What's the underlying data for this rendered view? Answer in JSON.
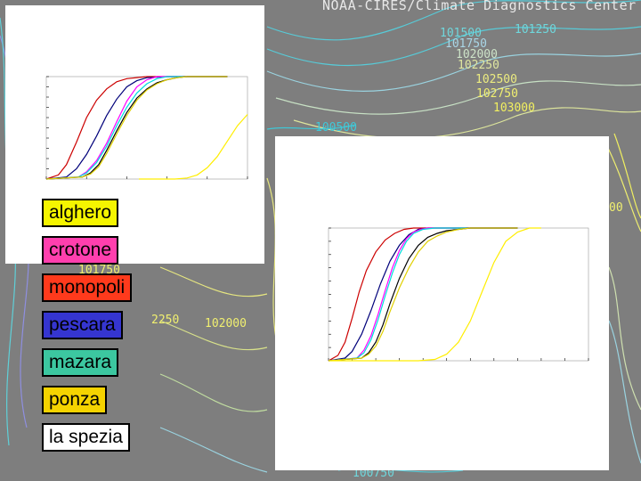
{
  "header": {
    "title": "NOAA-CIRES/Climate Diagnostics Center"
  },
  "isobars": [
    {
      "text": "101500",
      "color": "#6fd7dc"
    },
    {
      "text": "101250",
      "color": "#6fd7dc"
    },
    {
      "text": "101750",
      "color": "#a9d6e6"
    },
    {
      "text": "102000",
      "color": "#cde3c8"
    },
    {
      "text": "102250",
      "color": "#dfe6a0"
    },
    {
      "text": "102500",
      "color": "#ecec80"
    },
    {
      "text": "102750",
      "color": "#f0ef70"
    },
    {
      "text": "103000",
      "color": "#f2f060"
    },
    {
      "text": "100500",
      "color": "#40c8d8"
    },
    {
      "text": "00",
      "color": "#f0ef70"
    },
    {
      "text": "2250",
      "color": "#f0ef70"
    },
    {
      "text": "102000",
      "color": "#f0ef70"
    },
    {
      "text": "101750",
      "color": "#f0ef70"
    },
    {
      "text": "100750",
      "color": "#6fd7dc"
    }
  ],
  "legend": [
    {
      "label": "alghero",
      "color": "#f5f500",
      "text_color": "#000000"
    },
    {
      "label": "crotone",
      "color": "#ff3fae",
      "text_color": "#000000"
    },
    {
      "label": "monopoli",
      "color": "#ff3a1c",
      "text_color": "#000000"
    },
    {
      "label": "pescara",
      "color": "#3535d0",
      "text_color": "#000000"
    },
    {
      "label": "mazara",
      "color": "#3cc7a0",
      "text_color": "#000000"
    },
    {
      "label": "ponza",
      "color": "#f5d300",
      "text_color": "#000000"
    },
    {
      "label": "la spezia",
      "color": "#ffffff",
      "text_color": "#000000"
    }
  ],
  "chart_data": [
    {
      "type": "line",
      "xlim": [
        0,
        5
      ],
      "ylim": [
        0,
        1
      ],
      "grid": false,
      "series": [
        {
          "color": "#cc0000",
          "x": [
            0,
            0.3,
            0.5,
            0.75,
            1,
            1.25,
            1.5,
            1.75,
            2,
            2.5,
            3,
            3.5,
            4.5
          ],
          "y": [
            0,
            0.04,
            0.14,
            0.36,
            0.6,
            0.77,
            0.88,
            0.95,
            0.98,
            1,
            1,
            1,
            1
          ]
        },
        {
          "color": "#00007a",
          "x": [
            0,
            0.5,
            0.75,
            1,
            1.25,
            1.5,
            1.75,
            2,
            2.25,
            2.5,
            3,
            4.5
          ],
          "y": [
            0,
            0.02,
            0.1,
            0.24,
            0.42,
            0.62,
            0.78,
            0.9,
            0.96,
            0.99,
            1,
            1
          ]
        },
        {
          "color": "#ff00ff",
          "x": [
            0,
            0.8,
            1,
            1.25,
            1.5,
            1.75,
            2,
            2.25,
            2.5,
            2.75,
            3,
            4.5
          ],
          "y": [
            0,
            0.02,
            0.07,
            0.18,
            0.35,
            0.56,
            0.76,
            0.9,
            0.97,
            1,
            1,
            1
          ]
        },
        {
          "color": "#00dddd",
          "x": [
            0,
            0.8,
            1,
            1.25,
            1.5,
            1.75,
            2,
            2.25,
            2.5,
            2.75,
            3,
            4.5
          ],
          "y": [
            0,
            0.02,
            0.06,
            0.16,
            0.32,
            0.52,
            0.7,
            0.84,
            0.93,
            0.98,
            1,
            1
          ]
        },
        {
          "color": "#000000",
          "x": [
            0,
            0.9,
            1.1,
            1.3,
            1.5,
            1.75,
            2,
            2.25,
            2.5,
            2.75,
            3,
            3.25,
            3.5,
            4.5
          ],
          "y": [
            0,
            0.02,
            0.06,
            0.14,
            0.28,
            0.47,
            0.65,
            0.79,
            0.88,
            0.94,
            0.97,
            0.99,
            1,
            1
          ]
        },
        {
          "color": "#e0d000",
          "x": [
            0,
            0.9,
            1.1,
            1.3,
            1.5,
            1.75,
            2,
            2.25,
            2.5,
            2.75,
            3,
            3.25,
            3.5,
            4.5
          ],
          "y": [
            0,
            0.02,
            0.05,
            0.12,
            0.25,
            0.44,
            0.62,
            0.77,
            0.87,
            0.93,
            0.97,
            0.99,
            1,
            1
          ]
        },
        {
          "color": "#ffee00",
          "x": [
            2.3,
            3.2,
            3.5,
            3.75,
            4,
            4.25,
            4.5,
            4.75,
            5
          ],
          "y": [
            0,
            0,
            0.01,
            0.04,
            0.11,
            0.22,
            0.37,
            0.52,
            0.63
          ]
        }
      ]
    },
    {
      "type": "line",
      "xlim": [
        0,
        11
      ],
      "ylim": [
        0,
        1
      ],
      "grid": false,
      "series": [
        {
          "color": "#cc0000",
          "x": [
            0,
            0.4,
            0.7,
            1,
            1.3,
            1.6,
            2,
            2.4,
            2.8,
            3.2,
            3.6,
            4,
            5,
            8
          ],
          "y": [
            0,
            0.04,
            0.14,
            0.32,
            0.52,
            0.68,
            0.82,
            0.91,
            0.96,
            0.99,
            1,
            1,
            1,
            1
          ]
        },
        {
          "color": "#00007a",
          "x": [
            0,
            0.7,
            1,
            1.4,
            1.8,
            2.2,
            2.6,
            3,
            3.4,
            3.8,
            4.2,
            5,
            8
          ],
          "y": [
            0,
            0.02,
            0.07,
            0.2,
            0.38,
            0.58,
            0.75,
            0.87,
            0.95,
            0.99,
            1,
            1,
            1
          ]
        },
        {
          "color": "#ff00ff",
          "x": [
            0,
            1.2,
            1.5,
            1.8,
            2.1,
            2.4,
            2.7,
            3,
            3.3,
            3.6,
            3.9,
            4.2,
            5,
            8
          ],
          "y": [
            0,
            0.02,
            0.08,
            0.19,
            0.35,
            0.53,
            0.7,
            0.83,
            0.92,
            0.97,
            0.99,
            1,
            1,
            1
          ]
        },
        {
          "color": "#00dddd",
          "x": [
            0,
            1.2,
            1.5,
            1.8,
            2.1,
            2.4,
            2.7,
            3,
            3.3,
            3.6,
            4,
            4.5,
            5,
            8
          ],
          "y": [
            0,
            0.02,
            0.06,
            0.16,
            0.31,
            0.49,
            0.66,
            0.8,
            0.9,
            0.96,
            0.99,
            1,
            1,
            1
          ]
        },
        {
          "color": "#000000",
          "x": [
            0,
            1.4,
            1.7,
            2,
            2.3,
            2.6,
            3,
            3.4,
            3.8,
            4.2,
            4.6,
            5,
            5.5,
            6,
            8
          ],
          "y": [
            0,
            0.02,
            0.06,
            0.14,
            0.27,
            0.43,
            0.62,
            0.77,
            0.87,
            0.93,
            0.96,
            0.98,
            0.99,
            1,
            1
          ]
        },
        {
          "color": "#e0d000",
          "x": [
            0,
            1.4,
            1.7,
            2,
            2.3,
            2.6,
            3,
            3.4,
            3.8,
            4.2,
            4.6,
            5,
            5.5,
            6,
            6.5,
            8
          ],
          "y": [
            0,
            0.02,
            0.05,
            0.11,
            0.22,
            0.37,
            0.55,
            0.7,
            0.82,
            0.9,
            0.94,
            0.97,
            0.99,
            1,
            1,
            1
          ]
        },
        {
          "color": "#ffee00",
          "x": [
            0,
            3,
            3.8,
            4.5,
            5,
            5.5,
            6,
            6.5,
            7,
            7.5,
            8,
            8.5,
            9
          ],
          "y": [
            0,
            0,
            0,
            0.01,
            0.05,
            0.14,
            0.3,
            0.52,
            0.74,
            0.9,
            0.97,
            1,
            1
          ]
        }
      ]
    }
  ]
}
